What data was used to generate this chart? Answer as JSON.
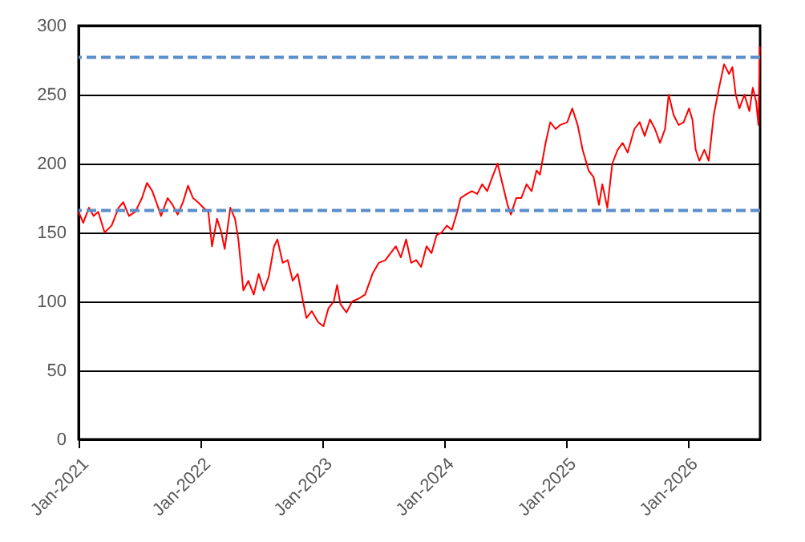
{
  "chart_data": {
    "type": "line",
    "x": [
      "2021-01-01",
      "2021-01-15",
      "2021-02-01",
      "2021-02-15",
      "2021-03-01",
      "2021-03-20",
      "2021-04-10",
      "2021-05-01",
      "2021-05-15",
      "2021-06-01",
      "2021-06-20",
      "2021-07-10",
      "2021-07-25",
      "2021-08-10",
      "2021-08-25",
      "2021-09-05",
      "2021-09-25",
      "2021-10-10",
      "2021-10-25",
      "2021-11-10",
      "2021-11-25",
      "2021-12-10",
      "2021-12-25",
      "2022-01-10",
      "2022-01-25",
      "2022-02-05",
      "2022-02-20",
      "2022-03-05",
      "2022-03-15",
      "2022-04-01",
      "2022-04-15",
      "2022-04-25",
      "2022-05-10",
      "2022-05-25",
      "2022-06-10",
      "2022-06-25",
      "2022-07-10",
      "2022-07-25",
      "2022-08-10",
      "2022-08-20",
      "2022-09-05",
      "2022-09-20",
      "2022-10-05",
      "2022-10-20",
      "2022-11-05",
      "2022-11-15",
      "2022-12-01",
      "2022-12-20",
      "2023-01-05",
      "2023-01-20",
      "2023-02-05",
      "2023-02-15",
      "2023-02-25",
      "2023-03-15",
      "2023-04-01",
      "2023-04-20",
      "2023-05-10",
      "2023-06-01",
      "2023-06-20",
      "2023-07-10",
      "2023-07-25",
      "2023-08-10",
      "2023-08-25",
      "2023-09-10",
      "2023-09-25",
      "2023-10-10",
      "2023-10-25",
      "2023-11-10",
      "2023-11-25",
      "2023-12-10",
      "2023-12-25",
      "2024-01-10",
      "2024-01-25",
      "2024-02-10",
      "2024-02-20",
      "2024-03-10",
      "2024-03-25",
      "2024-04-10",
      "2024-04-25",
      "2024-05-10",
      "2024-05-25",
      "2024-06-10",
      "2024-06-25",
      "2024-07-10",
      "2024-07-20",
      "2024-08-05",
      "2024-08-20",
      "2024-09-05",
      "2024-09-20",
      "2024-10-05",
      "2024-10-15",
      "2024-11-01",
      "2024-11-15",
      "2024-12-01",
      "2024-12-15",
      "2025-01-05",
      "2025-01-20",
      "2025-02-05",
      "2025-02-20",
      "2025-03-10",
      "2025-03-25",
      "2025-04-10",
      "2025-04-20",
      "2025-05-05",
      "2025-05-20",
      "2025-06-05",
      "2025-06-20",
      "2025-07-05",
      "2025-07-25",
      "2025-08-10",
      "2025-08-25",
      "2025-09-10",
      "2025-09-25",
      "2025-10-10",
      "2025-10-25",
      "2025-11-05",
      "2025-11-20",
      "2025-12-05",
      "2025-12-20",
      "2026-01-05",
      "2026-01-15",
      "2026-01-25",
      "2026-02-05",
      "2026-02-20",
      "2026-03-05",
      "2026-03-20",
      "2026-04-05",
      "2026-04-20",
      "2026-05-05",
      "2026-05-15",
      "2026-05-25",
      "2026-06-05",
      "2026-06-20",
      "2026-07-05",
      "2026-07-15",
      "2026-07-25",
      "2026-08-01",
      "2026-08-05"
    ],
    "series": [
      {
        "color": "#ff0000",
        "values": [
          165,
          157,
          168,
          162,
          165,
          150,
          155,
          168,
          172,
          162,
          165,
          175,
          186,
          180,
          170,
          162,
          175,
          170,
          163,
          172,
          184,
          175,
          172,
          168,
          165,
          140,
          160,
          150,
          138,
          168,
          160,
          145,
          108,
          115,
          105,
          120,
          108,
          118,
          140,
          145,
          128,
          130,
          115,
          120,
          100,
          88,
          93,
          85,
          82,
          95,
          100,
          112,
          98,
          92,
          100,
          102,
          105,
          120,
          128,
          130,
          135,
          140,
          132,
          145,
          128,
          130,
          125,
          140,
          135,
          148,
          150,
          155,
          152,
          165,
          175,
          178,
          180,
          178,
          185,
          180,
          190,
          200,
          185,
          170,
          163,
          175,
          175,
          185,
          180,
          195,
          192,
          215,
          230,
          225,
          228,
          230,
          240,
          228,
          210,
          195,
          190,
          170,
          185,
          168,
          200,
          210,
          215,
          208,
          225,
          230,
          220,
          232,
          225,
          215,
          225,
          250,
          235,
          228,
          230,
          240,
          232,
          210,
          202,
          210,
          202,
          235,
          255,
          272,
          265,
          270,
          250,
          240,
          250,
          238,
          255,
          245,
          228,
          285
        ]
      }
    ],
    "xlim": [
      "2021-01-01",
      "2026-08-06"
    ],
    "xticks": [
      {
        "value": "2021-01-01",
        "label": "Jan-2021"
      },
      {
        "value": "2022-01-01",
        "label": "Jan-2022"
      },
      {
        "value": "2023-01-01",
        "label": "Jan-2023"
      },
      {
        "value": "2024-01-01",
        "label": "Jan-2024"
      },
      {
        "value": "2025-01-01",
        "label": "Jan-2025"
      },
      {
        "value": "2026-01-01",
        "label": "Jan-2026"
      }
    ],
    "ylim": [
      0,
      300
    ],
    "yticks": [
      0,
      50,
      100,
      150,
      200,
      250,
      300
    ],
    "grid": "y",
    "marker": "none",
    "line_style": "solid",
    "ref_lines": [
      {
        "axis": "y",
        "value": 277,
        "color": "#5b8ec9",
        "line_style": "dashed"
      },
      {
        "axis": "y",
        "value": 166,
        "color": "#5b8ec9",
        "line_style": "dashed"
      }
    ]
  }
}
